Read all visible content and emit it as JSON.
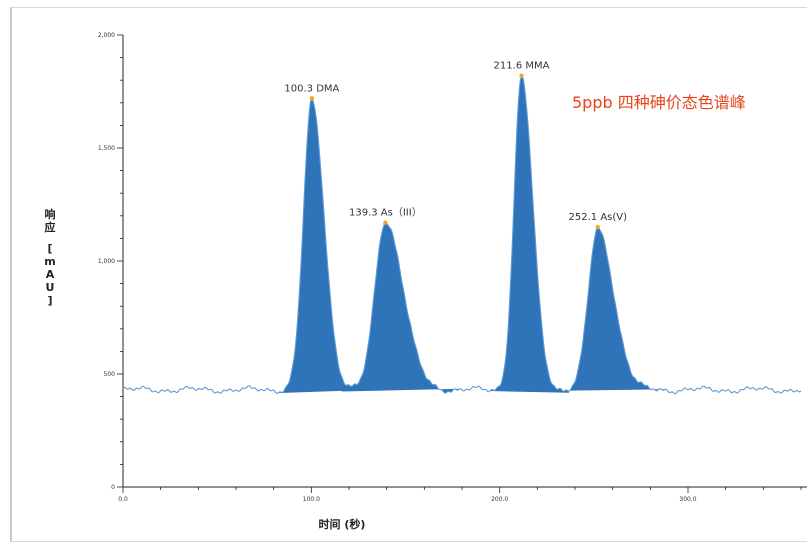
{
  "chart_data": {
    "type": "line",
    "title": "5ppb 四种砷价态色谱峰",
    "xlabel": "时间 (秒)",
    "ylabel_chars": [
      "响",
      "应",
      "",
      "[",
      "m",
      "A",
      "U",
      "]"
    ],
    "x_ticks": [
      {
        "value": 0,
        "label": "0.0"
      },
      {
        "value": 100,
        "label": "100.0"
      },
      {
        "value": 200,
        "label": "200.0"
      },
      {
        "value": 300,
        "label": "300.0"
      }
    ],
    "y_ticks": [
      {
        "value": 0,
        "label": "0"
      },
      {
        "value": 500,
        "label": "500"
      },
      {
        "value": 1000,
        "label": "1,000"
      },
      {
        "value": 1500,
        "label": "1,500"
      },
      {
        "value": 2000,
        "label": "2,000"
      }
    ],
    "xlim": [
      0,
      360
    ],
    "ylim": [
      0,
      2000
    ],
    "baseline": 430,
    "line_color": "#5b9bd5",
    "fill_color": "#2f73b8",
    "marker_color": "#f2a81d",
    "peaks": [
      {
        "time": 100.3,
        "height": 1720,
        "name": "DMA",
        "label": "100.3 DMA",
        "sigma_left": 4.5,
        "sigma_right": 6.5
      },
      {
        "time": 139.3,
        "height": 1170,
        "name": "As（III）",
        "label": "139.3 As（III）",
        "sigma_left": 5.5,
        "sigma_right": 9.5
      },
      {
        "time": 211.6,
        "height": 1820,
        "name": "MMA",
        "label": "211.6 MMA",
        "sigma_left": 4.0,
        "sigma_right": 6.0
      },
      {
        "time": 252.1,
        "height": 1150,
        "name": "As(V)",
        "label": "252.1 As(V)",
        "sigma_left": 5.0,
        "sigma_right": 8.5
      }
    ]
  }
}
